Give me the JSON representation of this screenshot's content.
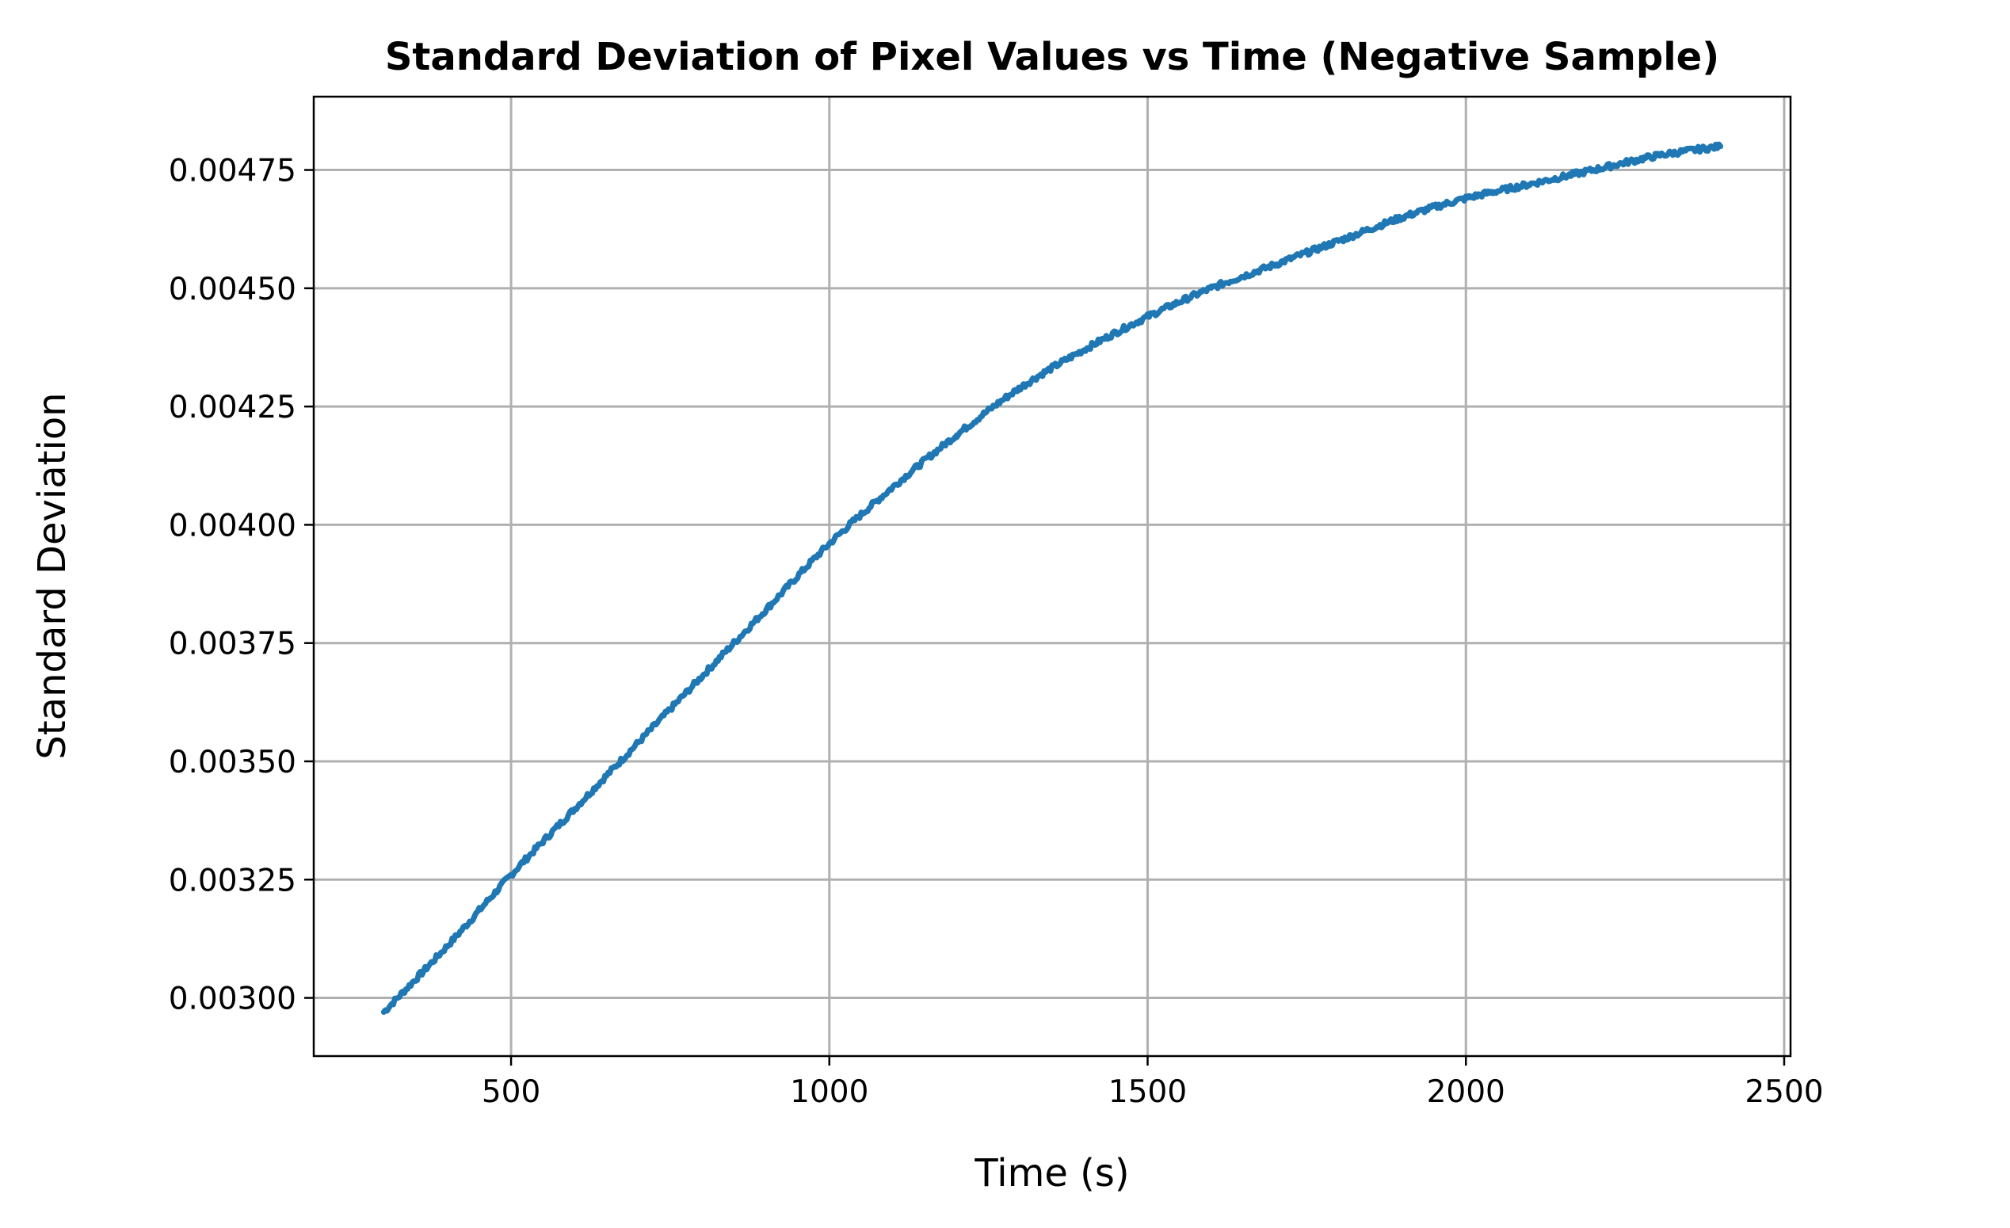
{
  "chart_data": {
    "type": "line",
    "title": "Standard Deviation of Pixel Values vs Time (Negative Sample)",
    "xlabel": "Time (s)",
    "ylabel": "Standard Deviation",
    "xlim": [
      190,
      2510
    ],
    "ylim": [
      0.002877,
      0.004905
    ],
    "grid": true,
    "x_ticks": [
      {
        "value": 500,
        "label": "500"
      },
      {
        "value": 1000,
        "label": "1000"
      },
      {
        "value": 1500,
        "label": "1500"
      },
      {
        "value": 2000,
        "label": "2000"
      },
      {
        "value": 2500,
        "label": "2500"
      }
    ],
    "y_ticks": [
      {
        "value": 0.003,
        "label": "0.00300"
      },
      {
        "value": 0.00325,
        "label": "0.00325"
      },
      {
        "value": 0.0035,
        "label": "0.00350"
      },
      {
        "value": 0.00375,
        "label": "0.00375"
      },
      {
        "value": 0.004,
        "label": "0.00400"
      },
      {
        "value": 0.00425,
        "label": "0.00425"
      },
      {
        "value": 0.0045,
        "label": "0.00450"
      },
      {
        "value": 0.00475,
        "label": "0.00475"
      }
    ],
    "series": [
      {
        "color": "#1f77b4",
        "x": [
          300,
          400,
          500,
          600,
          700,
          800,
          900,
          1000,
          1100,
          1200,
          1300,
          1400,
          1500,
          1600,
          1700,
          1800,
          1900,
          2000,
          2100,
          2200,
          2300,
          2400
        ],
        "y": [
          0.00297,
          0.00311,
          0.00326,
          0.0034,
          0.00354,
          0.00368,
          0.00382,
          0.00396,
          0.00408,
          0.00419,
          0.00429,
          0.00437,
          0.00444,
          0.0045,
          0.00455,
          0.0046,
          0.00465,
          0.00469,
          0.00472,
          0.00475,
          0.00478,
          0.0048
        ]
      }
    ]
  }
}
